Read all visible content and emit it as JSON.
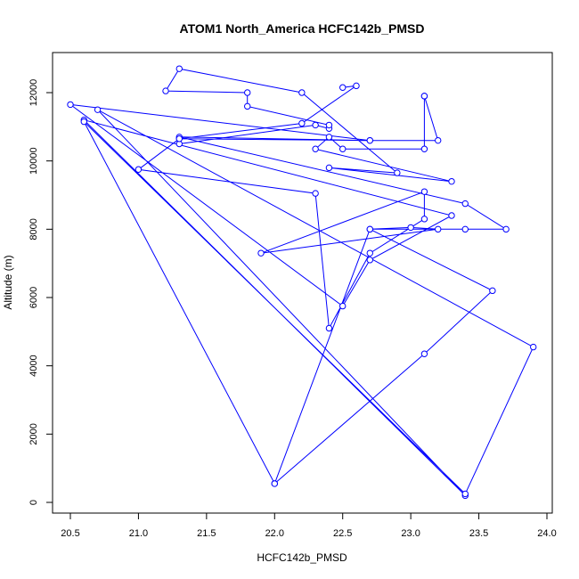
{
  "chart_data": {
    "type": "line",
    "title": "ATOM1 North_America HCFC142b_PMSD",
    "xlabel": "HCFC142b_PMSD",
    "ylabel": "Altitude (m)",
    "xlim": [
      20.4,
      24.0
    ],
    "ylim": [
      0,
      13000
    ],
    "x_ticks": [
      "20.5",
      "21.0",
      "21.5",
      "22.0",
      "22.5",
      "23.0",
      "23.5",
      "24.0"
    ],
    "y_ticks": [
      "0",
      "2000",
      "4000",
      "6000",
      "8000",
      "10000",
      "12000"
    ],
    "grid": false,
    "legend": "none",
    "line_color": "#0000ff",
    "marker": "open-circle",
    "series": [
      {
        "points": [
          [
            22.5,
            12150
          ],
          [
            22.6,
            12200
          ],
          [
            22.2,
            11100
          ],
          [
            21.3,
            10650
          ],
          [
            21.3,
            10500
          ],
          [
            22.3,
            11050
          ],
          [
            22.4,
            10950
          ],
          [
            22.4,
            11050
          ],
          [
            21.8,
            11600
          ],
          [
            21.8,
            12000
          ],
          [
            21.2,
            12050
          ],
          [
            21.3,
            12700
          ],
          [
            22.2,
            12000
          ],
          [
            22.9,
            9650
          ],
          [
            22.4,
            9800
          ],
          [
            23.3,
            9400
          ],
          [
            22.3,
            10350
          ],
          [
            22.4,
            10700
          ],
          [
            22.5,
            10350
          ],
          [
            23.1,
            10350
          ],
          [
            23.1,
            11900
          ],
          [
            23.1,
            11900
          ],
          [
            23.2,
            10600
          ],
          [
            22.7,
            10600
          ],
          [
            21.3,
            10700
          ],
          [
            23.4,
            8750
          ],
          [
            23.7,
            8000
          ],
          [
            23.4,
            8000
          ],
          [
            22.7,
            8000
          ],
          [
            23.0,
            8050
          ],
          [
            23.2,
            8000
          ],
          [
            21.9,
            7300
          ],
          [
            23.1,
            9100
          ],
          [
            23.1,
            8300
          ],
          [
            22.7,
            7300
          ],
          [
            22.4,
            5100
          ],
          [
            22.3,
            9050
          ],
          [
            21.0,
            9750
          ],
          [
            21.3,
            10650
          ],
          [
            22.7,
            10600
          ],
          [
            20.5,
            11650
          ],
          [
            22.5,
            5750
          ],
          [
            22.7,
            7100
          ],
          [
            23.3,
            8400
          ],
          [
            20.6,
            11200
          ],
          [
            23.4,
            200
          ],
          [
            20.7,
            11500
          ],
          [
            23.9,
            4550
          ],
          [
            23.4,
            250
          ],
          [
            20.6,
            11150
          ],
          [
            22.0,
            550
          ],
          [
            22.7,
            8000
          ],
          [
            23.6,
            6200
          ],
          [
            23.1,
            4350
          ],
          [
            22.0,
            550
          ]
        ]
      }
    ]
  }
}
